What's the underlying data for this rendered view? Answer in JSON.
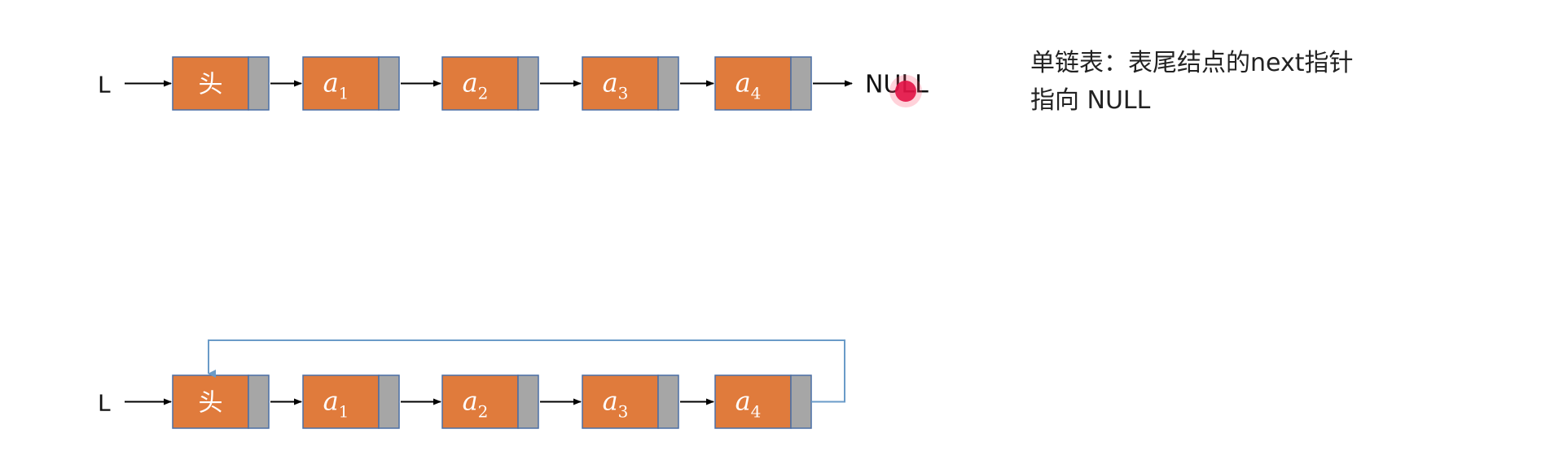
{
  "colors": {
    "node_fill": "#e07b3c",
    "node_border": "#4a6fa5",
    "pointer_fill": "#a6a6a6",
    "arrow": "#000000",
    "loop_arrow": "#6a9bc8",
    "cursor": "#d9003a"
  },
  "diagram1": {
    "head_pointer": "L",
    "head_label": "头",
    "nodes": [
      {
        "base": "a",
        "sub": "1"
      },
      {
        "base": "a",
        "sub": "2"
      },
      {
        "base": "a",
        "sub": "3"
      },
      {
        "base": "a",
        "sub": "4"
      }
    ],
    "tail": "NULL"
  },
  "diagram2": {
    "head_pointer": "L",
    "head_label": "头",
    "nodes": [
      {
        "base": "a",
        "sub": "1"
      },
      {
        "base": "a",
        "sub": "2"
      },
      {
        "base": "a",
        "sub": "3"
      },
      {
        "base": "a",
        "sub": "4"
      }
    ]
  },
  "caption": {
    "line1": "单链表：表尾结点的next指针",
    "line2": "指向 NULL"
  }
}
